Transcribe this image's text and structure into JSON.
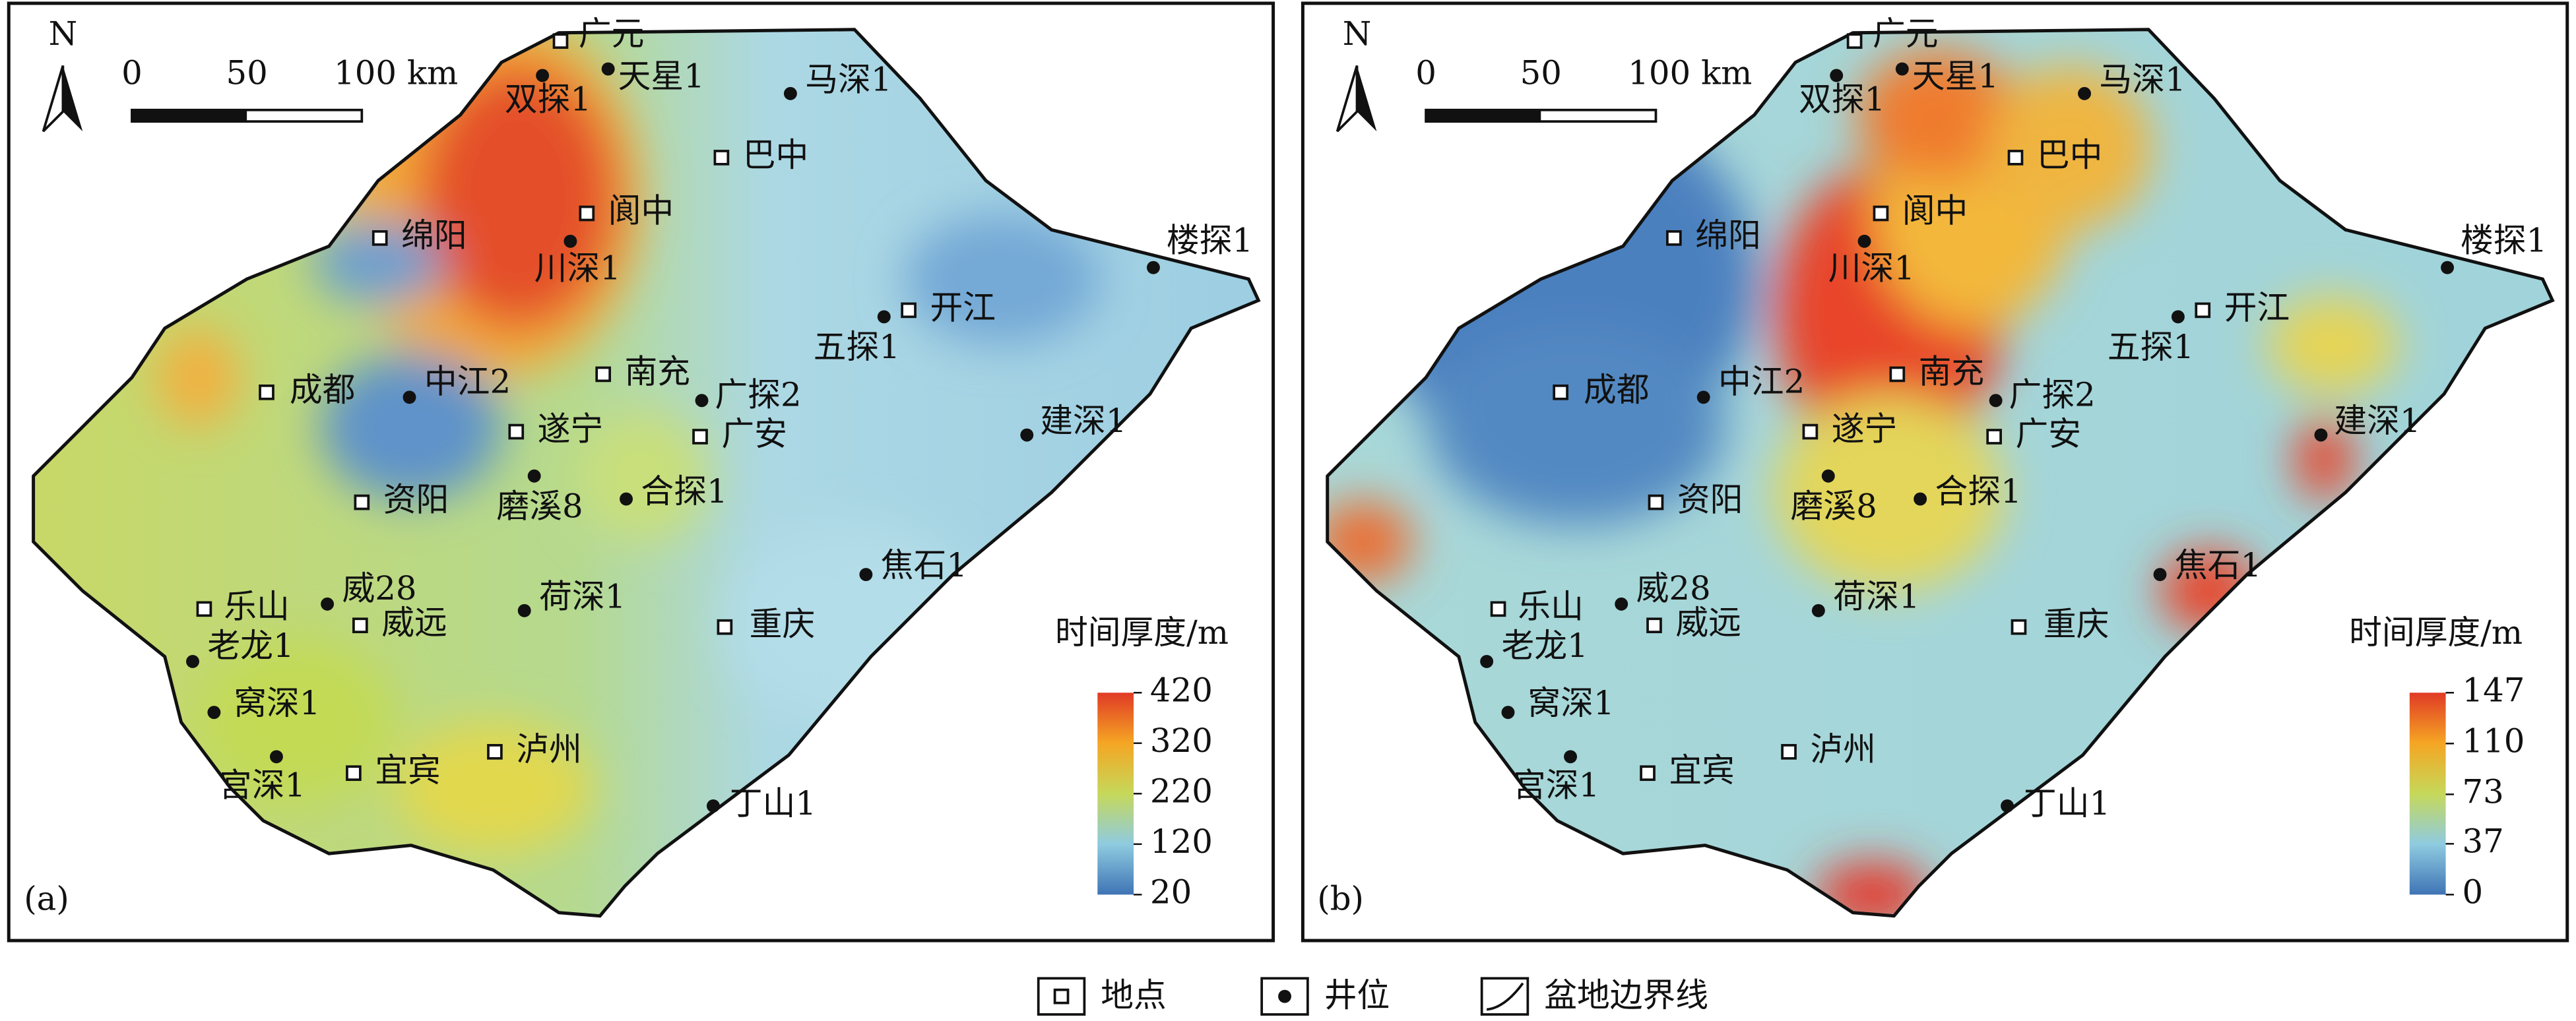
{
  "map": {
    "north": "N",
    "scale_labels": [
      "0",
      "50",
      "100 km"
    ]
  },
  "panels": [
    {
      "label": "(a)",
      "colorbar": {
        "title": "时间厚度/m",
        "ticks": [
          420,
          320,
          220,
          120,
          20
        ]
      }
    },
    {
      "label": "(b)",
      "colorbar": {
        "title": "时间厚度/m",
        "ticks": [
          147,
          110,
          73,
          37,
          0
        ]
      }
    }
  ],
  "places": [
    "广元",
    "巴中",
    "阆中",
    "绵阳",
    "成都",
    "南充",
    "遂宁",
    "广安",
    "开江",
    "资阳",
    "乐山",
    "威远",
    "重庆",
    "宜宾",
    "泸州"
  ],
  "wells": [
    "天星1",
    "双探1",
    "马深1",
    "川深1",
    "楼探1",
    "五探1",
    "中江2",
    "广探2",
    "建深1",
    "磨溪8",
    "合探1",
    "焦石1",
    "威28",
    "荷深1",
    "老龙1",
    "窝深1",
    "宫深1",
    "丁山1"
  ],
  "legend": {
    "items": [
      "地点",
      "井位",
      "盆地边界线"
    ]
  }
}
